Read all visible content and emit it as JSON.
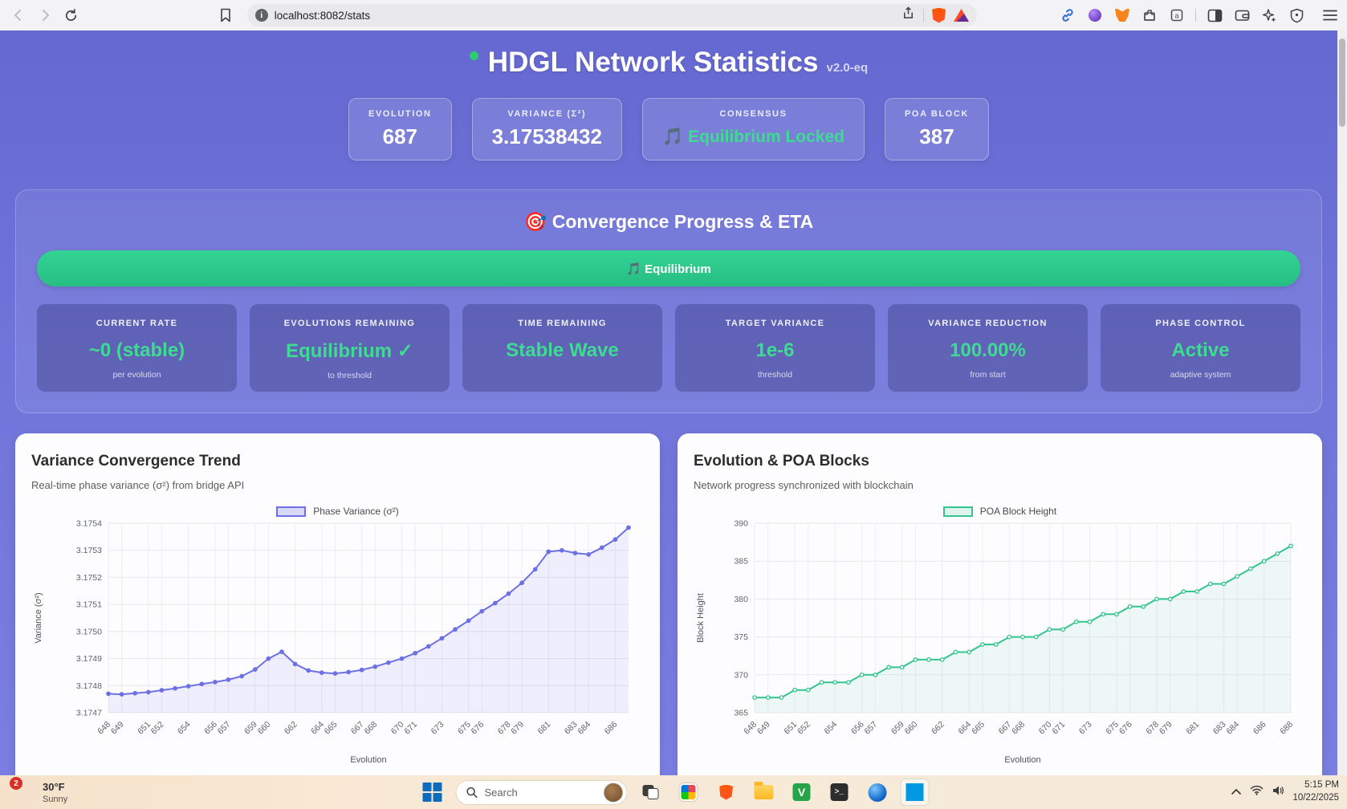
{
  "theme": {
    "accent_green": "#3ddc92",
    "progress_green": "#2bc98a",
    "bg_purple_top": "#6568d0",
    "bg_purple_bottom": "#7b7fe3"
  },
  "browser": {
    "url": "localhost:8082/stats",
    "toolbar_icons": [
      "back",
      "forward",
      "reload",
      "bookmark",
      "page-info",
      "share",
      "brave-shield",
      "bat-rewards",
      "link",
      "tab-search-orb",
      "metamask",
      "extensions",
      "container",
      "sidebar",
      "wallet",
      "leo-ai",
      "vpn-shield",
      "menu"
    ]
  },
  "header": {
    "title": "HDGL Network Statistics",
    "version": "v2.0-eq",
    "stats": [
      {
        "label": "EVOLUTION",
        "value": "687"
      },
      {
        "label": "VARIANCE (Σ²)",
        "value": "3.17538432"
      },
      {
        "label": "CONSENSUS",
        "icon": "🎵",
        "value": "Equilibrium Locked"
      },
      {
        "label": "POA BLOCK",
        "value": "387"
      }
    ]
  },
  "convergence": {
    "title": "🎯 Convergence Progress & ETA",
    "progress_label": "🎵 Equilibrium",
    "cards": [
      {
        "label": "CURRENT RATE",
        "value": "~0 (stable)",
        "sub": "per evolution"
      },
      {
        "label": "EVOLUTIONS REMAINING",
        "value": "Equilibrium ✓",
        "sub": "to threshold"
      },
      {
        "label": "TIME REMAINING",
        "value": "Stable Wave",
        "sub": ""
      },
      {
        "label": "TARGET VARIANCE",
        "value": "1e-6",
        "sub": "threshold"
      },
      {
        "label": "VARIANCE REDUCTION",
        "value": "100.00%",
        "sub": "from start"
      },
      {
        "label": "PHASE CONTROL",
        "value": "Active",
        "sub": "adaptive system"
      }
    ]
  },
  "chart_data": [
    {
      "type": "line",
      "title": "Variance Convergence Trend",
      "subtitle": "Real-time phase variance (σ²) from bridge API",
      "legend": "Phase Variance (σ²)",
      "xlabel": "Evolution",
      "ylabel": "Variance (σ²)",
      "color": "#6c70e4",
      "fill": "rgba(108,112,228,0.10)",
      "point_fill": "#6c70e4",
      "legend_fill": "rgba(108,112,228,0.25)",
      "ylim": [
        3.1747,
        3.1754
      ],
      "yticks": [
        "3.1754",
        "3.1753",
        "3.1752",
        "3.1751",
        "3.1750",
        "3.1749",
        "3.1748",
        "3.1747"
      ],
      "x": [
        648,
        649,
        650,
        651,
        652,
        653,
        654,
        655,
        656,
        657,
        658,
        659,
        660,
        661,
        662,
        663,
        664,
        665,
        666,
        667,
        668,
        669,
        670,
        671,
        672,
        673,
        674,
        675,
        676,
        677,
        678,
        679,
        680,
        681,
        682,
        683,
        684,
        685,
        686,
        687
      ],
      "values": [
        3.17477,
        3.174768,
        3.174772,
        3.174776,
        3.174783,
        3.17479,
        3.174798,
        3.174806,
        3.174813,
        3.174822,
        3.174835,
        3.17486,
        3.1749,
        3.174925,
        3.17488,
        3.174856,
        3.174848,
        3.174845,
        3.17485,
        3.174858,
        3.17487,
        3.174885,
        3.1749,
        3.17492,
        3.174945,
        3.174975,
        3.175008,
        3.17504,
        3.175075,
        3.175105,
        3.17514,
        3.17518,
        3.17523,
        3.175295,
        3.1753,
        3.17529,
        3.175285,
        3.17531,
        3.17534,
        3.175384
      ],
      "xticks": [
        648,
        649,
        651,
        652,
        654,
        656,
        657,
        659,
        660,
        662,
        664,
        665,
        667,
        668,
        670,
        671,
        673,
        675,
        676,
        678,
        679,
        681,
        683,
        684,
        686
      ],
      "grid": true,
      "legend_position": "top-center"
    },
    {
      "type": "line",
      "title": "Evolution & POA Blocks",
      "subtitle": "Network progress synchronized with blockchain",
      "legend": "POA Block Height",
      "xlabel": "Evolution",
      "ylabel": "Block Height",
      "color": "#34c48d",
      "fill": "rgba(52,196,141,0.08)",
      "point_fill": "#ffffff",
      "legend_fill": "rgba(52,196,141,0.15)",
      "ylim": [
        365,
        390
      ],
      "yticks": [
        "390",
        "385",
        "380",
        "375",
        "370",
        "365"
      ],
      "x": [
        648,
        649,
        650,
        651,
        652,
        653,
        654,
        655,
        656,
        657,
        658,
        659,
        660,
        661,
        662,
        663,
        664,
        665,
        666,
        667,
        668,
        669,
        670,
        671,
        672,
        673,
        674,
        675,
        676,
        677,
        678,
        679,
        680,
        681,
        682,
        683,
        684,
        685,
        686,
        687,
        688
      ],
      "values": [
        367,
        367,
        367,
        368,
        368,
        369,
        369,
        369,
        370,
        370,
        371,
        371,
        372,
        372,
        372,
        373,
        373,
        374,
        374,
        375,
        375,
        375,
        376,
        376,
        377,
        377,
        378,
        378,
        379,
        379,
        380,
        380,
        381,
        381,
        382,
        382,
        383,
        384,
        385,
        386,
        387
      ],
      "xticks": [
        648,
        649,
        651,
        652,
        654,
        656,
        657,
        659,
        660,
        662,
        664,
        665,
        667,
        668,
        670,
        671,
        673,
        675,
        676,
        678,
        679,
        681,
        683,
        684,
        686,
        688
      ],
      "grid": true,
      "legend_position": "top-center"
    }
  ],
  "taskbar": {
    "weather": {
      "badge": "2",
      "temp": "30°F",
      "condition": "Sunny"
    },
    "search_placeholder": "Search",
    "pinned_icons": [
      "start",
      "search",
      "task-view",
      "photos",
      "brave",
      "file-explorer",
      "virtualbox",
      "terminal",
      "browser-sphere",
      "vscode"
    ],
    "time": "5:15 PM",
    "date": "10/22/2025"
  }
}
